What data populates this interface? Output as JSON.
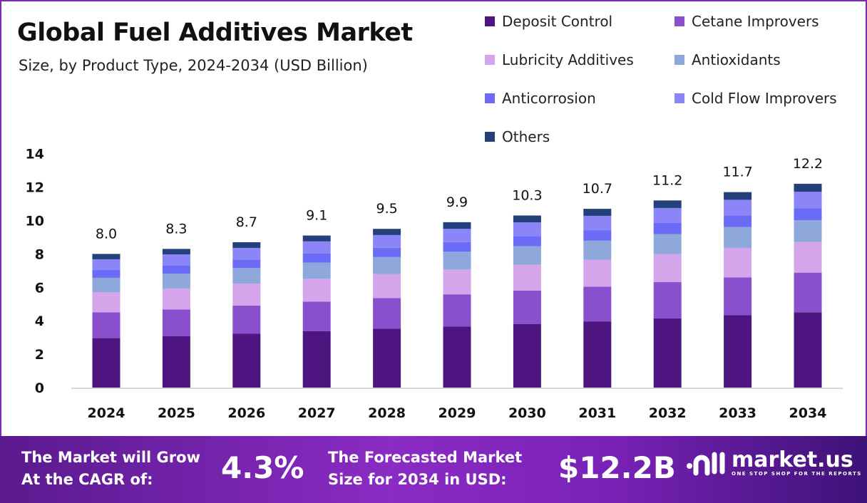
{
  "chart_data": {
    "type": "bar",
    "stacked": true,
    "title": "Global Fuel Additives Market",
    "subtitle": "Size, by Product Type, 2024-2034 (USD Billion)",
    "categories": [
      "2024",
      "2025",
      "2026",
      "2027",
      "2028",
      "2029",
      "2030",
      "2031",
      "2032",
      "2033",
      "2034"
    ],
    "totals": [
      "8.0",
      "8.3",
      "8.7",
      "9.1",
      "9.5",
      "9.9",
      "10.3",
      "10.7",
      "11.2",
      "11.7",
      "12.2"
    ],
    "ylim": [
      0,
      14
    ],
    "yticks": [
      "0",
      "2",
      "4",
      "6",
      "8",
      "10",
      "12",
      "14"
    ],
    "grid": false,
    "legend_position": "top-right",
    "series": [
      {
        "name": "Deposit Control",
        "color": "#4e1580",
        "values": [
          2.96,
          3.07,
          3.22,
          3.37,
          3.52,
          3.66,
          3.81,
          3.96,
          4.14,
          4.33,
          4.51
        ]
      },
      {
        "name": "Cetane Improvers",
        "color": "#8a4fcc",
        "values": [
          1.55,
          1.61,
          1.69,
          1.77,
          1.84,
          1.92,
          2.0,
          2.08,
          2.17,
          2.27,
          2.37
        ]
      },
      {
        "name": "Lubricity Additives",
        "color": "#d4a5ea",
        "values": [
          1.2,
          1.25,
          1.31,
          1.37,
          1.43,
          1.49,
          1.55,
          1.61,
          1.68,
          1.76,
          1.83
        ]
      },
      {
        "name": "Antioxidants",
        "color": "#8fa8dc",
        "values": [
          0.86,
          0.89,
          0.93,
          0.97,
          1.02,
          1.06,
          1.1,
          1.14,
          1.2,
          1.25,
          1.31
        ]
      },
      {
        "name": "Anticorrosion",
        "color": "#6b6bf5",
        "values": [
          0.47,
          0.49,
          0.51,
          0.54,
          0.56,
          0.58,
          0.61,
          0.63,
          0.66,
          0.69,
          0.72
        ]
      },
      {
        "name": "Cold Flow Improvers",
        "color": "#8b85f7",
        "values": [
          0.64,
          0.66,
          0.7,
          0.73,
          0.76,
          0.79,
          0.82,
          0.86,
          0.9,
          0.94,
          0.98
        ]
      },
      {
        "name": "Others",
        "color": "#23407a",
        "values": [
          0.32,
          0.33,
          0.34,
          0.35,
          0.37,
          0.4,
          0.41,
          0.42,
          0.45,
          0.46,
          0.48
        ]
      }
    ]
  },
  "footer": {
    "cagr_label_1": "The Market will Grow",
    "cagr_label_2": "At the CAGR of:",
    "cagr_value": "4.3%",
    "forecast_label_1": "The Forecasted Market",
    "forecast_label_2": "Size for 2034 in USD:",
    "forecast_value": "$12.2B",
    "brand": "market.us",
    "brand_tagline": "ONE STOP SHOP FOR THE REPORTS"
  }
}
